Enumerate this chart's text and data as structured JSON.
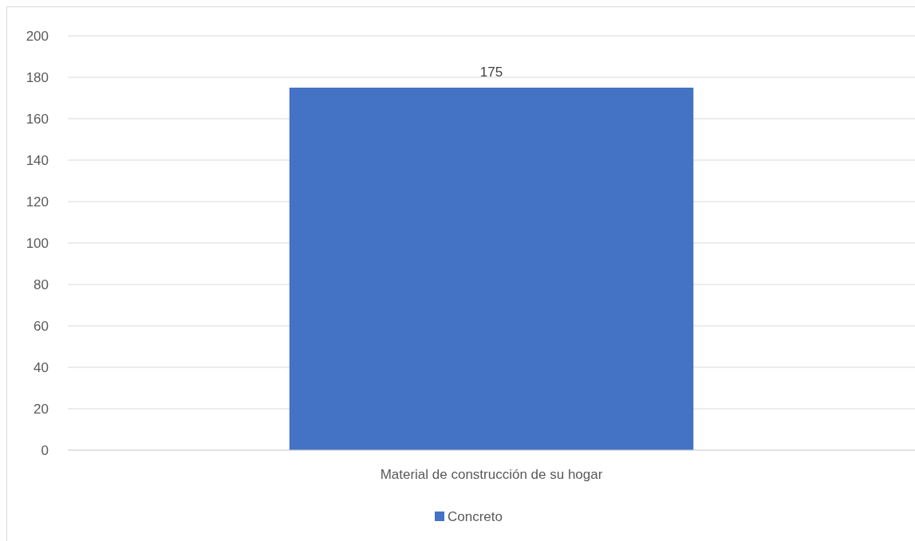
{
  "chart_data": {
    "type": "bar",
    "categories": [
      "Material de construcción de su hogar"
    ],
    "series": [
      {
        "name": "Concreto",
        "color": "#4472c4",
        "values": [
          175
        ]
      }
    ],
    "ylim": [
      0,
      200
    ],
    "yticks": [
      0,
      20,
      40,
      60,
      80,
      100,
      120,
      140,
      160,
      180,
      200
    ],
    "grid": "y",
    "legend": "bottom",
    "data_labels": true
  }
}
